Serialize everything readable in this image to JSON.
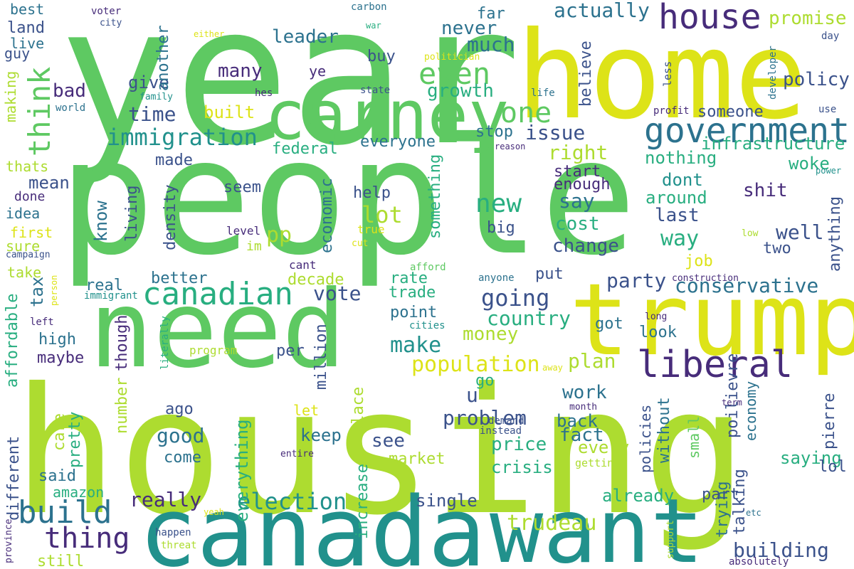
{
  "wordcloud": {
    "palette": {
      "background": "#ffffff",
      "dark_purple": "#472c7a",
      "navy": "#3b528b",
      "slate_blue": "#2c728e",
      "teal": "#21918c",
      "sea_green": "#28ae80",
      "green": "#5ec962",
      "lime": "#addc30",
      "yellow": "#dde318"
    },
    "words": [
      {
        "text": "year",
        "color": "#5ec962"
      },
      {
        "text": "home",
        "color": "#dde318"
      },
      {
        "text": "people",
        "color": "#5ec962"
      },
      {
        "text": "housing",
        "color": "#addc30"
      },
      {
        "text": "need",
        "color": "#5ec962"
      },
      {
        "text": "trump",
        "color": "#dde318"
      },
      {
        "text": "canada",
        "color": "#21918c"
      },
      {
        "text": "want",
        "color": "#21918c"
      },
      {
        "text": "carney",
        "color": "#5ec962"
      },
      {
        "text": "house",
        "color": "#472c7a"
      },
      {
        "text": "government",
        "color": "#2c728e"
      },
      {
        "text": "liberal",
        "color": "#472c7a"
      },
      {
        "text": "canadian",
        "color": "#28ae80"
      },
      {
        "text": "build",
        "color": "#2c728e"
      },
      {
        "text": "thing",
        "color": "#472c7a"
      },
      {
        "text": "think",
        "color": "#5ec962"
      },
      {
        "text": "one",
        "color": "#5ec962"
      },
      {
        "text": "even",
        "color": "#5ec962"
      },
      {
        "text": "immigration",
        "color": "#21918c"
      },
      {
        "text": "election",
        "color": "#21918c"
      },
      {
        "text": "trudeau",
        "color": "#addc30"
      },
      {
        "text": "population",
        "color": "#dde318"
      },
      {
        "text": "going",
        "color": "#3b528b"
      },
      {
        "text": "conservative",
        "color": "#2c728e"
      },
      {
        "text": "building",
        "color": "#3b528b"
      },
      {
        "text": "actually",
        "color": "#2c728e"
      },
      {
        "text": "promise",
        "color": "#addc30"
      },
      {
        "text": "much",
        "color": "#2c728e"
      },
      {
        "text": "growth",
        "color": "#28ae80"
      },
      {
        "text": "policy",
        "color": "#3b528b"
      },
      {
        "text": "time",
        "color": "#3b528b"
      },
      {
        "text": "leader",
        "color": "#2c728e"
      },
      {
        "text": "never",
        "color": "#2c728e"
      },
      {
        "text": "issue",
        "color": "#3b528b"
      },
      {
        "text": "right",
        "color": "#addc30"
      },
      {
        "text": "infrastructure",
        "color": "#28ae80"
      },
      {
        "text": "nothing",
        "color": "#28ae80"
      },
      {
        "text": "new",
        "color": "#28ae80"
      },
      {
        "text": "say",
        "color": "#2c728e"
      },
      {
        "text": "cost",
        "color": "#28ae80"
      },
      {
        "text": "way",
        "color": "#28ae80"
      },
      {
        "text": "change",
        "color": "#3b528b"
      },
      {
        "text": "lot",
        "color": "#addc30"
      },
      {
        "text": "make",
        "color": "#21918c"
      },
      {
        "text": "country",
        "color": "#28ae80"
      },
      {
        "text": "party",
        "color": "#3b528b"
      },
      {
        "text": "money",
        "color": "#addc30"
      },
      {
        "text": "vote",
        "color": "#3b528b"
      },
      {
        "text": "work",
        "color": "#2c728e"
      },
      {
        "text": "problem",
        "color": "#3b528b"
      },
      {
        "text": "good",
        "color": "#2c728e"
      },
      {
        "text": "plan",
        "color": "#addc30"
      },
      {
        "text": "really",
        "color": "#472c7a"
      },
      {
        "text": "everything",
        "color": "#28ae80"
      },
      {
        "text": "shit",
        "color": "#472c7a"
      },
      {
        "text": "well",
        "color": "#3b528b"
      },
      {
        "text": "last",
        "color": "#3b528b"
      },
      {
        "text": "dont",
        "color": "#21918c"
      },
      {
        "text": "around",
        "color": "#28ae80"
      },
      {
        "text": "woke",
        "color": "#28ae80"
      },
      {
        "text": "pp",
        "color": "#addc30"
      },
      {
        "text": "u",
        "color": "#3b528b"
      },
      {
        "text": "many",
        "color": "#472c7a"
      },
      {
        "text": "tax",
        "color": "#2c728e"
      },
      {
        "text": "mean",
        "color": "#3b528b"
      },
      {
        "text": "see",
        "color": "#3b528b"
      },
      {
        "text": "keep",
        "color": "#2c728e"
      },
      {
        "text": "price",
        "color": "#28ae80"
      },
      {
        "text": "crisis",
        "color": "#28ae80"
      },
      {
        "text": "market",
        "color": "#addc30"
      },
      {
        "text": "fact",
        "color": "#2c728e"
      },
      {
        "text": "back",
        "color": "#2c728e"
      },
      {
        "text": "every",
        "color": "#addc30"
      },
      {
        "text": "saying",
        "color": "#28ae80"
      },
      {
        "text": "already",
        "color": "#28ae80"
      },
      {
        "text": "single",
        "color": "#3b528b"
      },
      {
        "text": "bad",
        "color": "#472c7a"
      },
      {
        "text": "give",
        "color": "#3b528b"
      },
      {
        "text": "built",
        "color": "#dde318"
      },
      {
        "text": "federal",
        "color": "#28ae80"
      },
      {
        "text": "everyone",
        "color": "#2c728e"
      },
      {
        "text": "stop",
        "color": "#2c728e"
      },
      {
        "text": "someone",
        "color": "#3b528b"
      },
      {
        "text": "buy",
        "color": "#3b528b"
      },
      {
        "text": "far",
        "color": "#2c728e"
      },
      {
        "text": "believe",
        "color": "#3b528b"
      },
      {
        "text": "another",
        "color": "#2c728e"
      },
      {
        "text": "start",
        "color": "#472c7a"
      },
      {
        "text": "enough",
        "color": "#472c7a"
      },
      {
        "text": "know",
        "color": "#2c728e"
      },
      {
        "text": "living",
        "color": "#3b528b"
      },
      {
        "text": "density",
        "color": "#3b528b"
      },
      {
        "text": "economic",
        "color": "#2c728e"
      },
      {
        "text": "something",
        "color": "#28ae80"
      },
      {
        "text": "help",
        "color": "#3b528b"
      },
      {
        "text": "big",
        "color": "#3b528b"
      },
      {
        "text": "seem",
        "color": "#3b528b"
      },
      {
        "text": "made",
        "color": "#3b528b"
      },
      {
        "text": "job",
        "color": "#dde318"
      },
      {
        "text": "anything",
        "color": "#3b528b"
      },
      {
        "text": "rate",
        "color": "#28ae80"
      },
      {
        "text": "decade",
        "color": "#addc30"
      },
      {
        "text": "trade",
        "color": "#28ae80"
      },
      {
        "text": "point",
        "color": "#2c728e"
      },
      {
        "text": "better",
        "color": "#2c728e"
      },
      {
        "text": "real",
        "color": "#2c728e"
      },
      {
        "text": "put",
        "color": "#3b528b"
      },
      {
        "text": "look",
        "color": "#2c728e"
      },
      {
        "text": "got",
        "color": "#2c728e"
      },
      {
        "text": "go",
        "color": "#28ae80"
      },
      {
        "text": "per",
        "color": "#3b528b"
      },
      {
        "text": "high",
        "color": "#2c728e"
      },
      {
        "text": "maybe",
        "color": "#472c7a"
      },
      {
        "text": "though",
        "color": "#472c7a"
      },
      {
        "text": "million",
        "color": "#3b528b"
      },
      {
        "text": "ago",
        "color": "#3b528b"
      },
      {
        "text": "come",
        "color": "#2c728e"
      },
      {
        "text": "number",
        "color": "#addc30"
      },
      {
        "text": "care",
        "color": "#addc30"
      },
      {
        "text": "pretty",
        "color": "#28ae80"
      },
      {
        "text": "said",
        "color": "#2c728e"
      },
      {
        "text": "amazon",
        "color": "#28ae80"
      },
      {
        "text": "different",
        "color": "#3b528b"
      },
      {
        "text": "affordable",
        "color": "#28ae80"
      },
      {
        "text": "still",
        "color": "#addc30"
      },
      {
        "text": "let",
        "color": "#dde318"
      },
      {
        "text": "place",
        "color": "#addc30"
      },
      {
        "text": "increase",
        "color": "#28ae80"
      },
      {
        "text": "poilievre",
        "color": "#3b528b"
      },
      {
        "text": "economy",
        "color": "#2c728e"
      },
      {
        "text": "without",
        "color": "#2c728e"
      },
      {
        "text": "policies",
        "color": "#3b528b"
      },
      {
        "text": "small",
        "color": "#5ec962"
      },
      {
        "text": "trying",
        "color": "#2c728e"
      },
      {
        "text": "talking",
        "color": "#3b528b"
      },
      {
        "text": "part",
        "color": "#3b528b"
      },
      {
        "text": "two",
        "color": "#3b528b"
      },
      {
        "text": "pierre",
        "color": "#3b528b"
      },
      {
        "text": "lol",
        "color": "#3b528b"
      },
      {
        "text": "best",
        "color": "#2c728e"
      },
      {
        "text": "land",
        "color": "#3b528b"
      },
      {
        "text": "live",
        "color": "#2c728e"
      },
      {
        "text": "guy",
        "color": "#3b528b"
      },
      {
        "text": "making",
        "color": "#addc30"
      },
      {
        "text": "thats",
        "color": "#addc30"
      },
      {
        "text": "done",
        "color": "#472c7a"
      },
      {
        "text": "idea",
        "color": "#2c728e"
      },
      {
        "text": "first",
        "color": "#dde318"
      },
      {
        "text": "sure",
        "color": "#addc30"
      },
      {
        "text": "take",
        "color": "#addc30"
      },
      {
        "text": "ye",
        "color": "#472c7a"
      },
      {
        "text": "im",
        "color": "#addc30"
      },
      {
        "text": "level",
        "color": "#472c7a"
      },
      {
        "text": "true",
        "color": "#dde318"
      },
      {
        "text": "cut",
        "color": "#dde318"
      },
      {
        "text": "cant",
        "color": "#472c7a"
      },
      {
        "text": "afford",
        "color": "#5ec962"
      },
      {
        "text": "anyone",
        "color": "#2c728e"
      },
      {
        "text": "cities",
        "color": "#21918c"
      },
      {
        "text": "program",
        "color": "#addc30"
      },
      {
        "text": "literally",
        "color": "#28ae80"
      },
      {
        "text": "left",
        "color": "#472c7a"
      },
      {
        "text": "person",
        "color": "#dde318"
      },
      {
        "text": "immigrant",
        "color": "#21918c"
      },
      {
        "text": "campaign",
        "color": "#3b528b"
      },
      {
        "text": "world",
        "color": "#2c728e"
      },
      {
        "text": "hes",
        "color": "#472c7a"
      },
      {
        "text": "family",
        "color": "#21918c"
      },
      {
        "text": "voter",
        "color": "#472c7a"
      },
      {
        "text": "city",
        "color": "#3b528b"
      },
      {
        "text": "either",
        "color": "#dde318"
      },
      {
        "text": "carbon",
        "color": "#2c728e"
      },
      {
        "text": "war",
        "color": "#28ae80"
      },
      {
        "text": "politician",
        "color": "#dde318"
      },
      {
        "text": "state",
        "color": "#3b528b"
      },
      {
        "text": "life",
        "color": "#2c728e"
      },
      {
        "text": "less",
        "color": "#3b528b"
      },
      {
        "text": "developer",
        "color": "#2c728e"
      },
      {
        "text": "day",
        "color": "#3b528b"
      },
      {
        "text": "profit",
        "color": "#472c7a"
      },
      {
        "text": "use",
        "color": "#3b528b"
      },
      {
        "text": "reason",
        "color": "#472c7a"
      },
      {
        "text": "power",
        "color": "#21918c"
      },
      {
        "text": "low",
        "color": "#addc30"
      },
      {
        "text": "long",
        "color": "#472c7a"
      },
      {
        "text": "construction",
        "color": "#472c7a"
      },
      {
        "text": "instead",
        "color": "#3b528b"
      },
      {
        "text": "demand",
        "color": "#3b528b"
      },
      {
        "text": "month",
        "color": "#472c7a"
      },
      {
        "text": "entire",
        "color": "#472c7a"
      },
      {
        "text": "getting",
        "color": "#addc30"
      },
      {
        "text": "away",
        "color": "#dde318"
      },
      {
        "text": "term",
        "color": "#472c7a"
      },
      {
        "text": "etc",
        "color": "#2c728e"
      },
      {
        "text": "support",
        "color": "#addc30"
      },
      {
        "text": "absolutely",
        "color": "#472c7a"
      },
      {
        "text": "happen",
        "color": "#3b528b"
      },
      {
        "text": "threat",
        "color": "#addc30"
      },
      {
        "text": "yeah",
        "color": "#dde318"
      },
      {
        "text": "province",
        "color": "#472c7a"
      }
    ]
  }
}
